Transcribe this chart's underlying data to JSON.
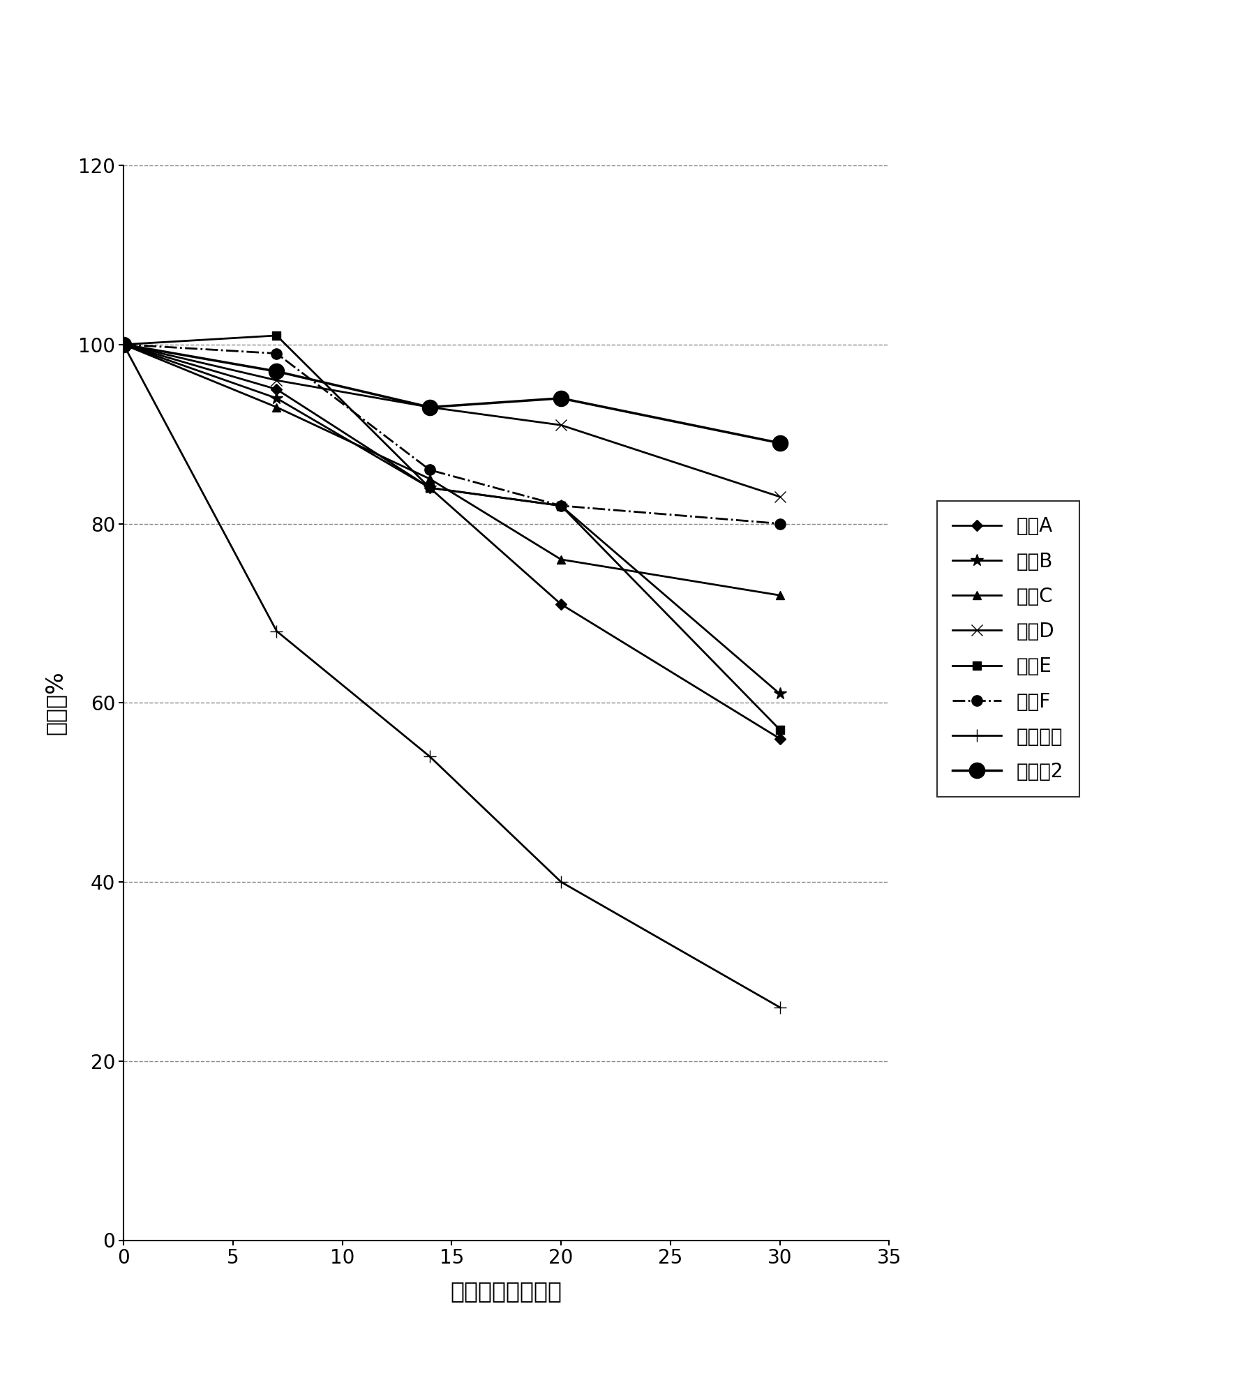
{
  "title": "",
  "xlabel": "温度负荷期（日）",
  "ylabel": "残存量%",
  "xlim": [
    0,
    35
  ],
  "ylim": [
    0,
    120
  ],
  "xticks": [
    0,
    5,
    10,
    15,
    20,
    25,
    30,
    35
  ],
  "yticks": [
    0,
    20,
    40,
    60,
    80,
    100,
    120
  ],
  "series": [
    {
      "label": "试剂A",
      "x": [
        0,
        7,
        14,
        20,
        30
      ],
      "y": [
        100,
        95,
        84,
        71,
        56
      ],
      "marker": "D",
      "linestyle": "-",
      "linewidth": 2.0,
      "markersize": 8
    },
    {
      "label": "试剂B",
      "x": [
        0,
        7,
        14,
        20,
        30
      ],
      "y": [
        100,
        94,
        84,
        82,
        61
      ],
      "marker": "*",
      "linestyle": "-",
      "linewidth": 2.0,
      "markersize": 13
    },
    {
      "label": "试剂C",
      "x": [
        0,
        7,
        14,
        20,
        30
      ],
      "y": [
        100,
        93,
        85,
        76,
        72
      ],
      "marker": "^",
      "linestyle": "-",
      "linewidth": 2.0,
      "markersize": 9
    },
    {
      "label": "试剂D",
      "x": [
        0,
        7,
        14,
        20,
        30
      ],
      "y": [
        100,
        96,
        93,
        91,
        83
      ],
      "marker": "x",
      "linestyle": "-",
      "linewidth": 2.0,
      "markersize": 11
    },
    {
      "label": "试剂E",
      "x": [
        0,
        7,
        14,
        20,
        30
      ],
      "y": [
        100,
        101,
        84,
        82,
        57
      ],
      "marker": "s",
      "linestyle": "-",
      "linewidth": 2.0,
      "markersize": 9
    },
    {
      "label": "试剂F",
      "x": [
        0,
        7,
        14,
        20,
        30
      ],
      "y": [
        100,
        99,
        86,
        82,
        80
      ],
      "marker": "o",
      "linestyle": "-.",
      "linewidth": 2.0,
      "markersize": 11
    },
    {
      "label": "对照试剂",
      "x": [
        0,
        7,
        14,
        20,
        30
      ],
      "y": [
        100,
        68,
        54,
        40,
        26
      ],
      "marker": "+",
      "linestyle": "-",
      "linewidth": 2.0,
      "markersize": 13
    },
    {
      "label": "实施例2",
      "x": [
        0,
        7,
        14,
        20,
        30
      ],
      "y": [
        100,
        97,
        93,
        94,
        89
      ],
      "marker": "o",
      "linestyle": "-",
      "linewidth": 2.5,
      "markersize": 16
    }
  ]
}
